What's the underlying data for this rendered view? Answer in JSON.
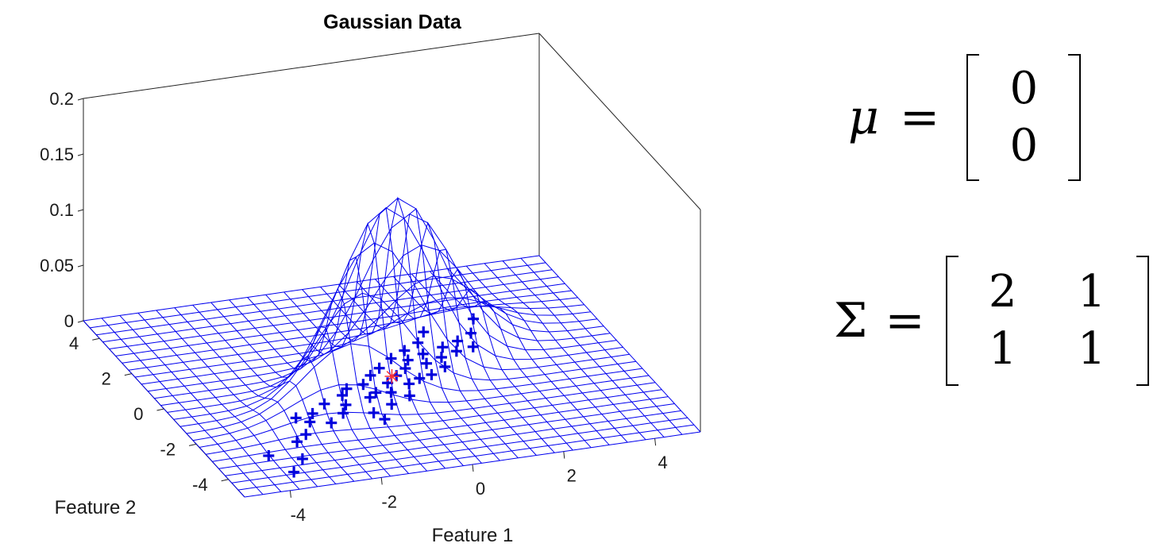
{
  "chart_data": {
    "type": "surface3d",
    "title": "Gaussian Data",
    "xlabel": "Feature 1",
    "ylabel": "Feature 2",
    "zlabel": "",
    "x_ticks": [
      "-4",
      "-2",
      "0",
      "2",
      "4"
    ],
    "y_ticks": [
      "-4",
      "-2",
      "0",
      "2",
      "4"
    ],
    "z_ticks": [
      "0",
      "0.05",
      "0.1",
      "0.15",
      "0.2"
    ],
    "xlim": [
      -5,
      5
    ],
    "ylim": [
      -5,
      5
    ],
    "zlim": [
      0,
      0.2
    ],
    "surface": {
      "function": "bivariate normal pdf",
      "mean": [
        0,
        0
      ],
      "covariance": [
        [
          2,
          1
        ],
        [
          1,
          1
        ]
      ],
      "grid_from": -5,
      "grid_to": 5,
      "grid_step": 0.4,
      "color": "#0000ee"
    },
    "samples": {
      "marker": "+",
      "color": "#0000dd",
      "points": [
        [
          -3.6,
          -4.1
        ],
        [
          -3.8,
          -3.1
        ],
        [
          -3.0,
          -2.6
        ],
        [
          -3.2,
          -3.5
        ],
        [
          -2.7,
          -2.3
        ],
        [
          -2.6,
          -1.4
        ],
        [
          -2.2,
          -1.3
        ],
        [
          -2.4,
          -1.7
        ],
        [
          -2.0,
          -1.9
        ],
        [
          -1.8,
          -0.9
        ],
        [
          -1.6,
          -1.5
        ],
        [
          -1.4,
          -1.1
        ],
        [
          -1.3,
          -0.6
        ],
        [
          -1.1,
          -0.3
        ],
        [
          -1.0,
          -1.7
        ],
        [
          -0.8,
          -0.9
        ],
        [
          -0.7,
          -0.2
        ],
        [
          -0.6,
          -0.7
        ],
        [
          -0.5,
          -1.4
        ],
        [
          -0.4,
          0.2
        ],
        [
          -0.3,
          -0.8
        ],
        [
          -0.2,
          -0.3
        ],
        [
          -0.1,
          0.5
        ],
        [
          0.0,
          -1.1
        ],
        [
          0.1,
          0.0
        ],
        [
          0.2,
          -0.5
        ],
        [
          0.3,
          0.9
        ],
        [
          0.4,
          0.3
        ],
        [
          0.5,
          -0.3
        ],
        [
          0.6,
          0.7
        ],
        [
          0.7,
          1.2
        ],
        [
          0.8,
          -0.2
        ],
        [
          0.9,
          0.4
        ],
        [
          1.0,
          0.9
        ],
        [
          1.1,
          1.5
        ],
        [
          1.2,
          0.1
        ],
        [
          1.3,
          0.6
        ],
        [
          1.5,
          1.1
        ],
        [
          1.7,
          0.8
        ],
        [
          1.9,
          1.3
        ],
        [
          2.1,
          0.9
        ],
        [
          2.3,
          1.6
        ],
        [
          2.6,
          2.3
        ],
        [
          1.4,
          2.0
        ],
        [
          -0.9,
          -2.1
        ]
      ]
    },
    "mean_marker": {
      "x": 0,
      "y": 0,
      "symbol": "*",
      "color": "#ff3030"
    }
  },
  "equations": {
    "mu": {
      "symbol": "μ",
      "equals": "=",
      "values": [
        "0",
        "0"
      ]
    },
    "sigma": {
      "symbol": "Σ",
      "equals": "=",
      "values": [
        [
          "2",
          "1"
        ],
        [
          "1",
          "1"
        ]
      ]
    }
  }
}
